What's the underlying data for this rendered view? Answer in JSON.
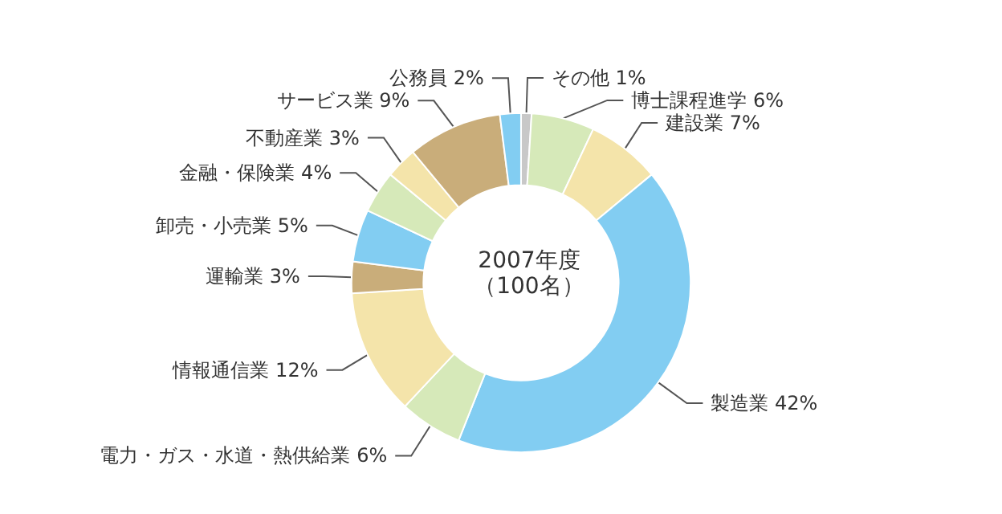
{
  "chart_data": {
    "type": "donut",
    "title": "2007年度",
    "subtitle": "（100名）",
    "categories": [
      "その他",
      "博士課程進学",
      "建設業",
      "製造業",
      "電力・ガス・水道・熱供給業",
      "情報通信業",
      "運輸業",
      "卸売・小売業",
      "金融・保険業",
      "不動産業",
      "サービス業",
      "公務員"
    ],
    "values": [
      1,
      6,
      7,
      42,
      6,
      12,
      3,
      5,
      4,
      3,
      9,
      2
    ],
    "value_labels": [
      "1%",
      "6%",
      "7%",
      "42%",
      "6%",
      "12%",
      "3%",
      "5%",
      "4%",
      "3%",
      "9%",
      "2%"
    ],
    "colors": [
      "#c8c8c8",
      "#d6e9b9",
      "#f4e4aa",
      "#82cdf2",
      "#d6e9b9",
      "#f4e4aa",
      "#c9ad7a",
      "#82cdf2",
      "#d6e9b9",
      "#f4e4aa",
      "#c9ad7a",
      "#82cdf2"
    ],
    "legend": false
  }
}
